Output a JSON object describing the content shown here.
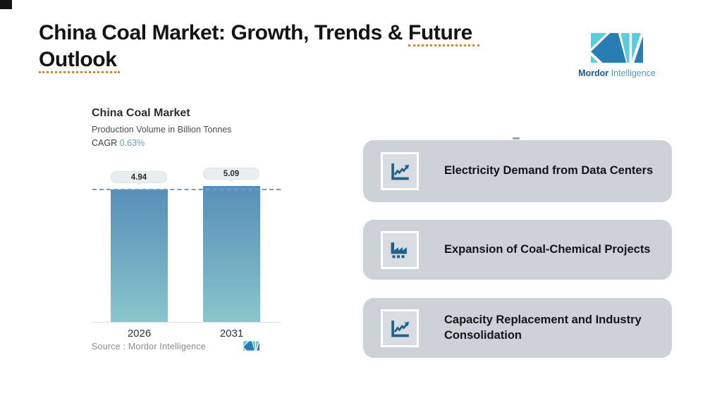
{
  "header": {
    "title_plain": "China Coal Market: Growth, Trends & ",
    "title_underlined_word": "Future",
    "title_line2_word": "Outlook",
    "brand_bold": "Mordor",
    "brand_light": "Intelligence"
  },
  "chart_data": {
    "type": "bar",
    "title": "China Coal Market",
    "subtitle": "Production Volume in Billion Tonnes",
    "cagr_label": "CAGR",
    "cagr_value": "0.63%",
    "categories": [
      "2026",
      "2031"
    ],
    "values": [
      4.94,
      5.09
    ],
    "value_labels": [
      "4.94",
      "5.09"
    ],
    "unit": "Billion Tonnes",
    "ylim": [
      0,
      5.7
    ],
    "grid": false,
    "legend": false,
    "dashed_reference_level": 4.94,
    "source_label": "Source :  Mordor Intelligence",
    "colors": {
      "bar_gradient_top": "#578fba",
      "bar_gradient_bottom": "#8ac6cb",
      "dashed_line": "#6d9ecf",
      "cagr_accent": "#5fa0c9"
    }
  },
  "cards": {
    "items": [
      {
        "icon": "trend-chart-icon",
        "label": "Electricity Demand from Data Centers"
      },
      {
        "icon": "factory-icon",
        "label": "Expansion of Coal-Chemical Projects"
      },
      {
        "icon": "trend-chart-icon",
        "label": "Capacity Replacement and Industry Consolidation"
      }
    ]
  },
  "logo_colors": {
    "teal": "#5ecbd9",
    "blue": "#2a7cb5"
  }
}
